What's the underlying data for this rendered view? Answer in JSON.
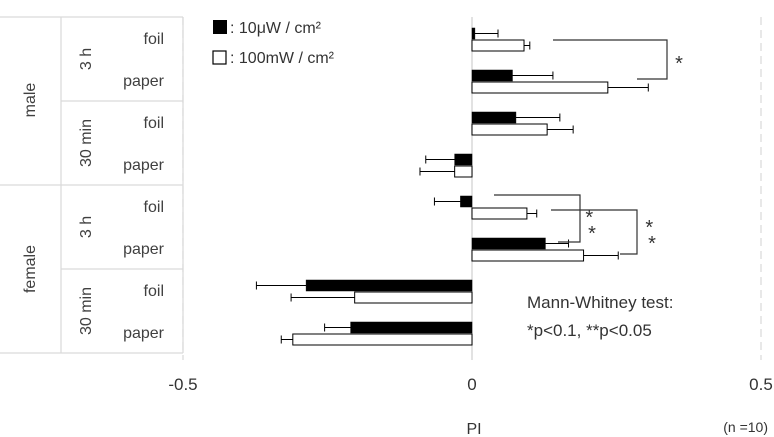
{
  "chart_data": {
    "type": "bar",
    "orientation": "horizontal",
    "title": "",
    "xlabel": "PI",
    "ylabel": "",
    "xlim": [
      -0.5,
      0.5
    ],
    "x_ticks": [
      "-0.5",
      "0",
      "0.5"
    ],
    "grid": false,
    "legend_position": "top-left",
    "groups": [
      {
        "sex": "male",
        "subgroups": [
          {
            "time": "3 h",
            "rows": [
              "foil",
              "paper"
            ]
          },
          {
            "time": "30 min",
            "rows": [
              "foil",
              "paper"
            ]
          }
        ]
      },
      {
        "sex": "female",
        "subgroups": [
          {
            "time": "3 h",
            "rows": [
              "foil",
              "paper"
            ]
          },
          {
            "time": "30 min",
            "rows": [
              "foil",
              "paper"
            ]
          }
        ]
      }
    ],
    "categories": [
      "male 3 h foil",
      "male 3 h paper",
      "male 30 min foil",
      "male 30 min paper",
      "female 3 h foil",
      "female 3 h paper",
      "female 30 min foil",
      "female 30 min paper"
    ],
    "series": [
      {
        "name": "10μW / cm²",
        "fill": "#000000",
        "values": [
          0.005,
          0.07,
          0.076,
          -0.03,
          -0.02,
          0.127,
          -0.287,
          -0.21
        ],
        "errors": [
          0.04,
          0.07,
          0.076,
          0.05,
          0.045,
          0.04,
          0.086,
          0.045
        ]
      },
      {
        "name": "100mW / cm²",
        "fill": "#ffffff",
        "values": [
          0.09,
          0.235,
          0.13,
          -0.03,
          0.095,
          0.193,
          -0.203,
          -0.31
        ],
        "errors": [
          0.01,
          0.07,
          0.045,
          0.06,
          0.017,
          0.06,
          0.11,
          0.02
        ]
      }
    ],
    "legend": [
      {
        "marker": "filled",
        "label": "10μW / cm²"
      },
      {
        "marker": "open",
        "label": "100mW / cm²"
      }
    ],
    "significance": [
      {
        "text": "*"
      },
      {
        "text": "* *"
      },
      {
        "text": "* *"
      }
    ],
    "annotation_lines": [
      "Mann-Whitney test:",
      "*p<0.1, **p<0.05"
    ],
    "sample_note": "(n =10)"
  }
}
